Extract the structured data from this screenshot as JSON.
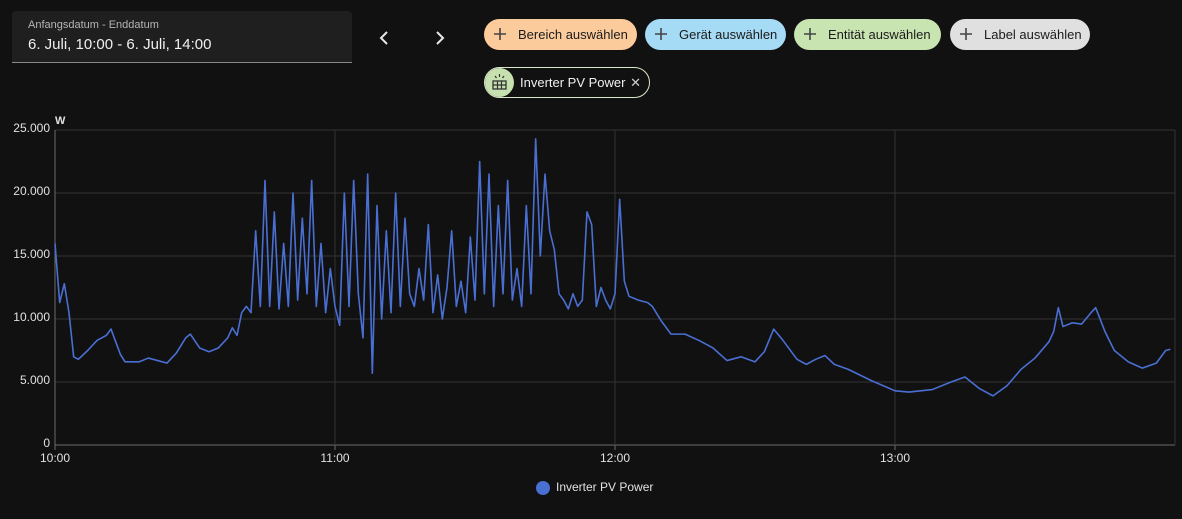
{
  "header": {
    "date_label": "Anfangsdatum - Enddatum",
    "date_value": "6. Juli, 10:00 - 6. Juli, 14:00",
    "chips": [
      "Bereich auswählen",
      "Gerät auswählen",
      "Entität auswählen",
      "Label auswählen"
    ],
    "selected": "Inverter PV Power"
  },
  "chart_data": {
    "type": "line",
    "y_label": "W",
    "x": [
      "10:00",
      "10:01",
      "10:02",
      "10:03",
      "10:04",
      "10:05",
      "10:07",
      "10:09",
      "10:11",
      "10:12",
      "10:13",
      "10:14",
      "10:15",
      "10:18",
      "10:20",
      "10:22",
      "10:24",
      "10:26",
      "10:28",
      "10:29",
      "10:31",
      "10:33",
      "10:35",
      "10:37",
      "10:38",
      "10:39",
      "10:40",
      "10:41",
      "10:42",
      "10:43",
      "10:44",
      "10:45",
      "10:46",
      "10:47",
      "10:48",
      "10:49",
      "10:50",
      "10:51",
      "10:52",
      "10:53",
      "10:54",
      "10:55",
      "10:56",
      "10:57",
      "10:58",
      "10:59",
      "11:00",
      "11:01",
      "11:02",
      "11:03",
      "11:04",
      "11:05",
      "11:06",
      "11:07",
      "11:08",
      "11:09",
      "11:10",
      "11:11",
      "11:12",
      "11:13",
      "11:14",
      "11:15",
      "11:16",
      "11:17",
      "11:18",
      "11:19",
      "11:20",
      "11:21",
      "11:22",
      "11:23",
      "11:24",
      "11:25",
      "11:26",
      "11:27",
      "11:28",
      "11:29",
      "11:30",
      "11:31",
      "11:32",
      "11:33",
      "11:34",
      "11:35",
      "11:36",
      "11:37",
      "11:38",
      "11:39",
      "11:40",
      "11:41",
      "11:42",
      "11:43",
      "11:44",
      "11:45",
      "11:46",
      "11:47",
      "11:48",
      "11:49",
      "11:50",
      "11:51",
      "11:52",
      "11:53",
      "11:54",
      "11:55",
      "11:56",
      "11:57",
      "11:58",
      "11:59",
      "12:00",
      "12:01",
      "12:02",
      "12:03",
      "12:05",
      "12:07",
      "12:08",
      "12:10",
      "12:12",
      "12:15",
      "12:18",
      "12:21",
      "12:24",
      "12:27",
      "12:30",
      "12:32",
      "12:34",
      "12:36",
      "12:39",
      "12:41",
      "12:43",
      "12:45",
      "12:47",
      "12:50",
      "12:55",
      "13:00",
      "13:03",
      "13:08",
      "13:12",
      "13:15",
      "13:18",
      "13:21",
      "13:24",
      "13:27",
      "13:30",
      "13:33",
      "13:34",
      "13:35",
      "13:36",
      "13:38",
      "13:40",
      "13:42",
      "13:43",
      "13:45",
      "13:47",
      "13:50",
      "13:53",
      "13:56",
      "13:58",
      "13:59"
    ],
    "series": [
      {
        "name": "Inverter PV Power",
        "color": "#4a6fd3",
        "values": [
          16000,
          11300,
          12800,
          10500,
          7000,
          6800,
          7500,
          8300,
          8700,
          9200,
          8200,
          7200,
          6600,
          6600,
          6900,
          6700,
          6500,
          7300,
          8500,
          8800,
          7700,
          7400,
          7700,
          8500,
          9300,
          8700,
          10500,
          11000,
          10500,
          17000,
          11000,
          21000,
          11000,
          18500,
          10800,
          16000,
          11000,
          20000,
          11500,
          18000,
          12000,
          21000,
          11000,
          16000,
          10500,
          14000,
          11000,
          9500,
          20000,
          11000,
          21000,
          12000,
          8500,
          21500,
          5700,
          19000,
          10000,
          17000,
          10500,
          20000,
          11000,
          18000,
          12000,
          11000,
          14000,
          11500,
          17500,
          10500,
          13500,
          10000,
          12500,
          17000,
          11000,
          13000,
          10500,
          16500,
          11500,
          22500,
          12000,
          21500,
          11000,
          19000,
          12000,
          21000,
          11500,
          14000,
          11000,
          19000,
          12000,
          24300,
          15000,
          21500,
          17000,
          15500,
          12000,
          11500,
          10800,
          12000,
          11000,
          11500,
          18500,
          17500,
          11000,
          12500,
          11500,
          10800,
          12000,
          19500,
          13000,
          11800,
          11500,
          11300,
          11000,
          9800,
          8800,
          8800,
          8300,
          7700,
          6700,
          7000,
          6600,
          7400,
          9200,
          8300,
          6800,
          6400,
          6800,
          7100,
          6400,
          6000,
          5100,
          4300,
          4200,
          4400,
          5000,
          5400,
          4500,
          3900,
          4700,
          6000,
          6900,
          8200,
          9000,
          10900,
          9400,
          9700,
          9600,
          10500,
          10900,
          9000,
          7500,
          6600,
          6100,
          6500,
          7500,
          7600
        ]
      }
    ],
    "xlim": [
      "10:00",
      "14:00"
    ],
    "xticks": [
      "10:00",
      "11:00",
      "12:00",
      "13:00"
    ],
    "ylim": [
      0,
      25000
    ],
    "yticks": [
      0,
      {
        "value": 5000,
        "label": "5.000"
      },
      {
        "value": 10000,
        "label": "10.000"
      },
      {
        "value": 15000,
        "label": "15.000"
      },
      {
        "value": 20000,
        "label": "20.000"
      },
      {
        "value": 25000,
        "label": "25.000"
      }
    ],
    "grid": true,
    "legend": "bottom"
  }
}
